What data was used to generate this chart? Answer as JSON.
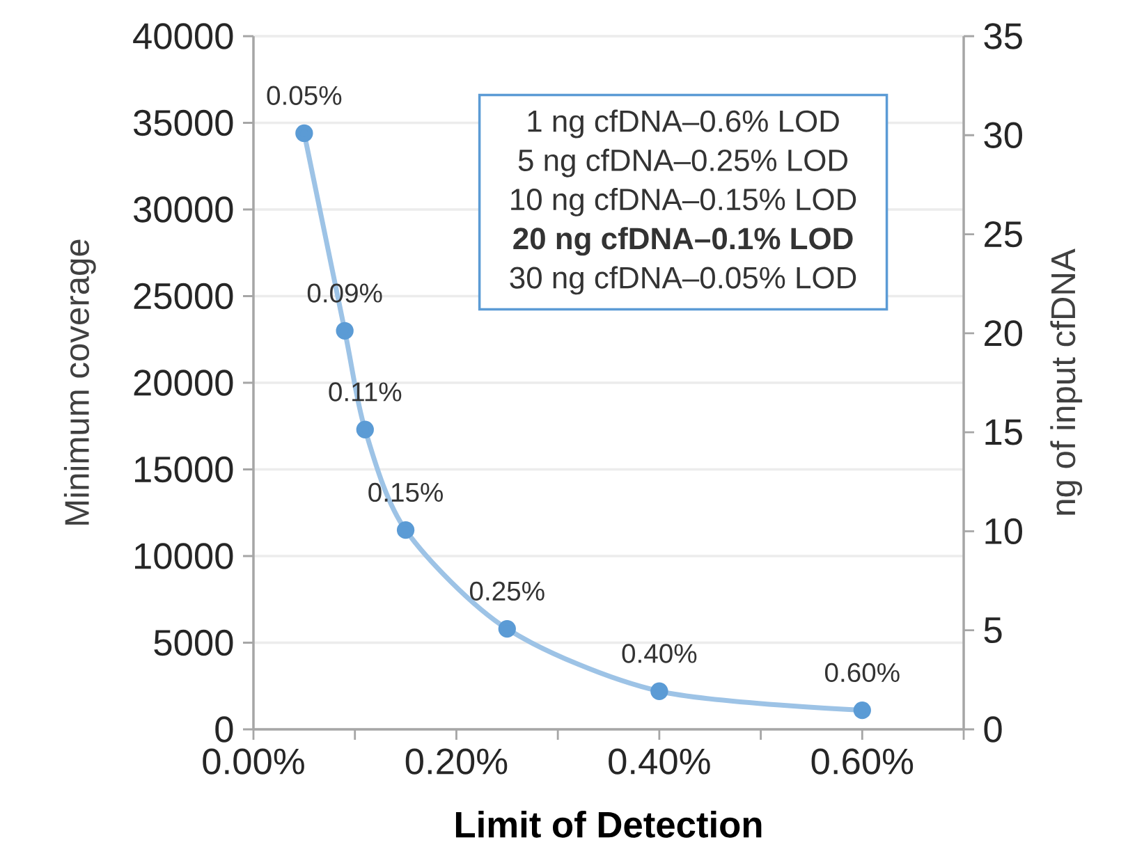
{
  "chart_data": {
    "type": "line",
    "xlabel": "Limit of Detection",
    "ylabel": "Minimum coverage",
    "y2label": "ng of input cfDNA",
    "x": [
      0.05,
      0.09,
      0.11,
      0.15,
      0.25,
      0.4,
      0.6
    ],
    "series": [
      {
        "color": "#5b9bd5",
        "values": [
          34400,
          23000,
          17300,
          11500,
          5800,
          2200,
          1100
        ]
      }
    ],
    "xlim": [
      0,
      0.7
    ],
    "xticks": [
      {
        "value": 0,
        "label": "0.00%"
      },
      {
        "value": 0.1,
        "label": null
      },
      {
        "value": 0.2,
        "label": "0.20%"
      },
      {
        "value": 0.3,
        "label": null
      },
      {
        "value": 0.4,
        "label": "0.40%"
      },
      {
        "value": 0.5,
        "label": null
      },
      {
        "value": 0.6,
        "label": "0.60%"
      },
      {
        "value": 0.7,
        "label": null
      }
    ],
    "ylim": [
      0,
      40000
    ],
    "yticks": [
      0,
      5000,
      10000,
      15000,
      20000,
      25000,
      30000,
      35000,
      40000
    ],
    "y2lim": [
      0,
      35
    ],
    "y2ticks": [
      0,
      5,
      10,
      15,
      20,
      25,
      30,
      35
    ],
    "annotations": [
      "1 ng cfDNA–0.6% LOD",
      "5 ng cfDNA–0.25% LOD",
      "10 ng cfDNA–0.15% LOD",
      "**20 ng cfDNA–0.1% LOD**",
      "30 ng cfDNA–0.05% LOD",
      {
        "text": "0.05%",
        "x": 0.05,
        "y": 34400
      },
      {
        "text": "0.09%",
        "x": 0.09,
        "y": 23000
      },
      {
        "text": "0.11%",
        "x": 0.11,
        "y": 17300
      },
      {
        "text": "0.15%",
        "x": 0.15,
        "y": 11500
      },
      {
        "text": "0.25%",
        "x": 0.25,
        "y": 5800
      },
      {
        "text": "0.40%",
        "x": 0.4,
        "y": 2200
      },
      {
        "text": "0.60%",
        "x": 0.6,
        "y": 1100
      }
    ],
    "grid": "y",
    "marker": "circle",
    "line_style": "solid"
  }
}
